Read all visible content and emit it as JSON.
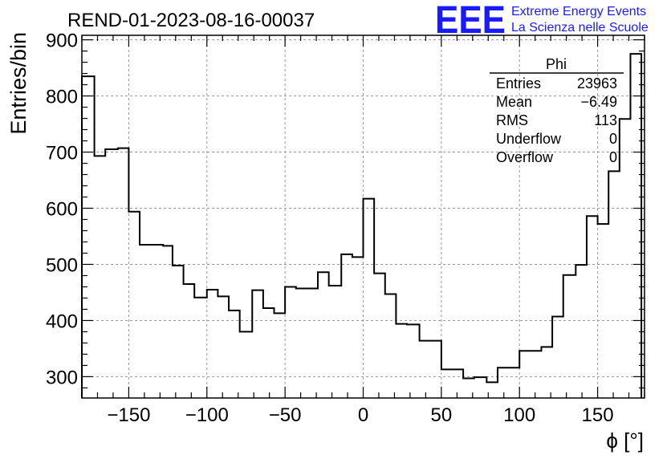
{
  "title": "REND-01-2023-08-16-00037",
  "logo": {
    "mark": "EEE",
    "line1": "Extreme Energy Events",
    "line2": "La Scienza nelle Scuole",
    "color": "#1a1aff"
  },
  "stats": {
    "name": "Phi",
    "rows": [
      {
        "label": "Entries",
        "value": "23963"
      },
      {
        "label": "Mean",
        "value": "−6.49"
      },
      {
        "label": "RMS",
        "value": "113"
      },
      {
        "label": "Underflow",
        "value": "0"
      },
      {
        "label": "Overflow",
        "value": "0"
      }
    ]
  },
  "chart_data": {
    "type": "histogram",
    "title": "REND-01-2023-08-16-00037",
    "xlabel": "ϕ [°]",
    "ylabel": "Entries/bin",
    "xlim": [
      -180,
      180
    ],
    "ylim": [
      262,
      908
    ],
    "xticks": [
      -150,
      -100,
      -50,
      0,
      50,
      100,
      150
    ],
    "xtick_labels": [
      "−150",
      "−100",
      "−50",
      "0",
      "50",
      "100",
      "150"
    ],
    "yticks": [
      300,
      400,
      500,
      600,
      700,
      800,
      900
    ],
    "ytick_labels": [
      "300",
      "400",
      "500",
      "600",
      "700",
      "800",
      "900"
    ],
    "grid": true,
    "line_color": "#000000",
    "bins": [
      [
        -180,
        -172,
        835
      ],
      [
        -172,
        -165,
        693
      ],
      [
        -165,
        -157,
        705
      ],
      [
        -157,
        -150,
        707
      ],
      [
        -150,
        -143,
        594
      ],
      [
        -143,
        -128,
        535
      ],
      [
        -128,
        -122,
        533
      ],
      [
        -122,
        -115,
        498
      ],
      [
        -115,
        -108,
        465
      ],
      [
        -108,
        -100,
        441
      ],
      [
        -100,
        -93,
        455
      ],
      [
        -93,
        -86,
        443
      ],
      [
        -86,
        -79,
        418
      ],
      [
        -79,
        -71,
        380
      ],
      [
        -71,
        -64,
        454
      ],
      [
        -64,
        -57,
        422
      ],
      [
        -57,
        -50,
        413
      ],
      [
        -50,
        -43,
        460
      ],
      [
        -43,
        -29,
        457
      ],
      [
        -29,
        -22,
        486
      ],
      [
        -22,
        -14,
        462
      ],
      [
        -14,
        -7,
        518
      ],
      [
        -7,
        0,
        513
      ],
      [
        0,
        7,
        617
      ],
      [
        7,
        14,
        484
      ],
      [
        14,
        21,
        447
      ],
      [
        21,
        28,
        394
      ],
      [
        28,
        36,
        393
      ],
      [
        36,
        50,
        364
      ],
      [
        50,
        64,
        313
      ],
      [
        64,
        71,
        297
      ],
      [
        71,
        79,
        299
      ],
      [
        79,
        86,
        290
      ],
      [
        86,
        100,
        316
      ],
      [
        100,
        114,
        346
      ],
      [
        114,
        121,
        353
      ],
      [
        121,
        128,
        407
      ],
      [
        128,
        136,
        481
      ],
      [
        136,
        143,
        499
      ],
      [
        143,
        150,
        586
      ],
      [
        150,
        157,
        572
      ],
      [
        157,
        164,
        666
      ],
      [
        164,
        171,
        759
      ],
      [
        171,
        178,
        875
      ]
    ]
  }
}
